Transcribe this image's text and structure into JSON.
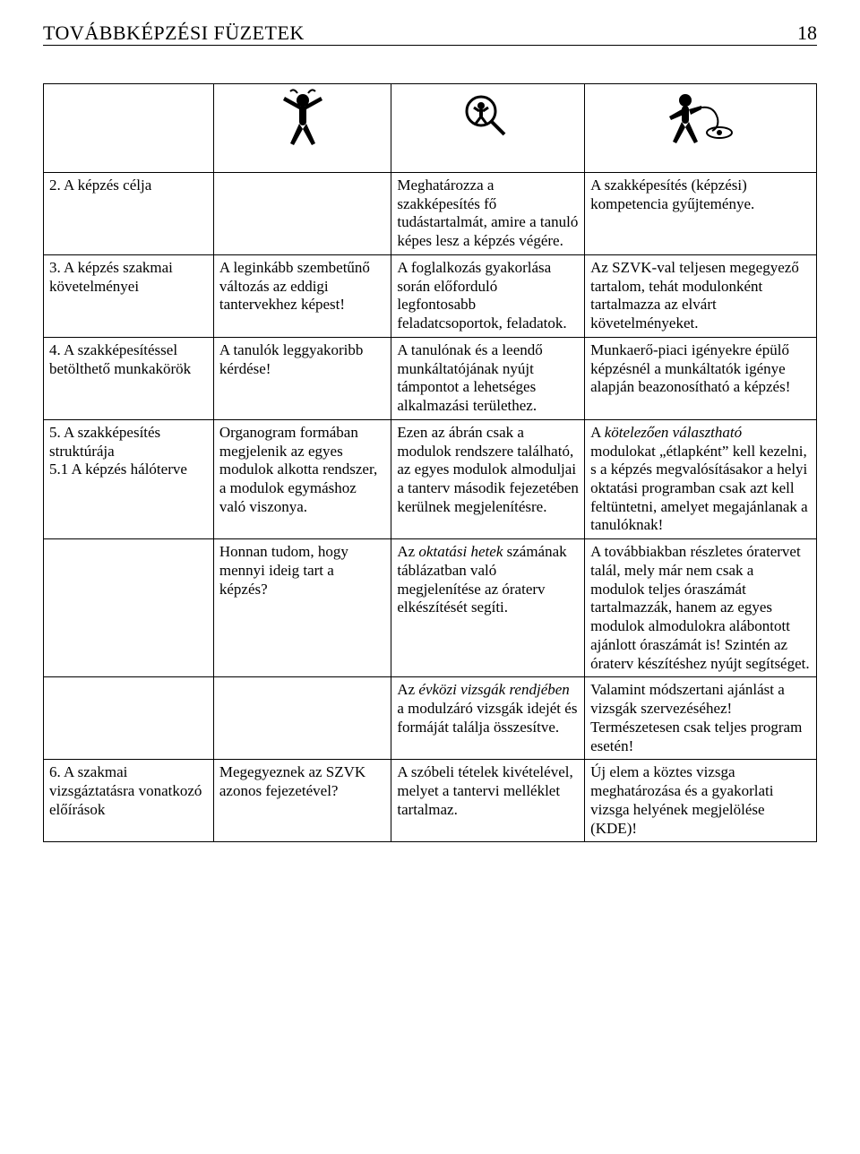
{
  "header": {
    "title": "TOVÁBBKÉPZÉSI FÜZETEK",
    "page_number": "18"
  },
  "icons": {
    "figure1_name": "figure-inspect-icon",
    "figure2_name": "magnifier-figure-icon",
    "figure3_name": "figure-cord-icon"
  },
  "rows": [
    {
      "c1": "2. A képzés célja",
      "c2": "",
      "c3": "Meghatározza a szakképesítés fő tudástartalmát, amire a tanuló képes lesz a képzés végére.",
      "c4": "A szakképesítés (képzési) kompetencia gyűjteménye."
    },
    {
      "c1": "3. A képzés szakmai követelményei",
      "c2": "A leginkább szembetűnő változás az eddigi tantervekhez képest!",
      "c3": "A foglalkozás gyakorlása során előforduló legfontosabb feladatcsoportok, feladatok.",
      "c4": "Az SZVK-val teljesen megegyező tartalom, tehát modulonként tartalmazza az elvárt követelményeket."
    },
    {
      "c1": "4. A szakképesítéssel betölthető munkakörök",
      "c2": "A tanulók leggyakoribb kérdése!",
      "c3": "A tanulónak és a leendő munkáltatójának nyújt támpontot a lehetséges alkalmazási területhez.",
      "c4": "Munkaerő-piaci igényekre épülő képzésnél a munkáltatók igénye alapján beazonosítható a képzés!"
    },
    {
      "c1": "5. A szakképesítés struktúrája\n5.1 A képzés hálóterve",
      "c2": "Organogram formában megjelenik az egyes modulok alkotta rendszer, a modulok egymáshoz való viszonya.",
      "c3": "Ezen az ábrán csak a modulok rendszere található, az egyes modulok almoduljai a tanterv második fejezetében kerülnek megjelenítésre.",
      "c4_html": "A <span class=\"italic\">kötelezően választható</span> modulokat „étlapként” kell kezelni, s a képzés megvalósításakor a helyi oktatási programban csak azt kell feltüntetni, amelyet megajánlanak a tanulóknak!"
    },
    {
      "c1": "",
      "c2": "Honnan tudom, hogy mennyi ideig tart a képzés?",
      "c3_html": "Az <span class=\"italic\">oktatási hetek</span> számának táblázatban való megjelenítése az óraterv elkészítését segíti.",
      "c4": "A továbbiakban részletes óratervet talál, mely már nem csak a modulok teljes óraszámát tartalmazzák, hanem az egyes modulok almodulokra alábontott ajánlott óraszámát is! Szintén az óraterv készítéshez nyújt segítséget."
    },
    {
      "c1": "",
      "c2": "",
      "c3_html": "Az <span class=\"italic\">évközi vizsgák rendjében</span> a modulzáró vizsgák idejét és formáját találja összesítve.",
      "c4": "Valamint módszertani ajánlást a vizsgák szervezéséhez! Természetesen csak teljes program esetén!"
    },
    {
      "c1": "6. A szakmai vizsgáztatásra vonatkozó előírások",
      "c2": "Megegyeznek az SZVK azonos fejezetével?",
      "c3": "A szóbeli tételek kivételével, melyet a tantervi melléklet tartalmaz.",
      "c4": "Új elem a köztes vizsga meghatározása és a gyakorlati vizsga helyének megjelölése (KDE)!"
    }
  ]
}
